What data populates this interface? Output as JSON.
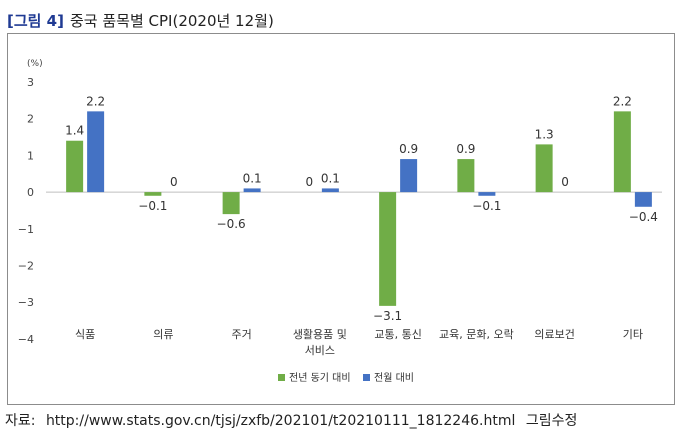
{
  "header": {
    "bracket": "[그림 4]",
    "title": "중국 품목별 CPI(2020년 12월)"
  },
  "source": {
    "label": "자료:",
    "url": "http://www.stats.gov.cn/tjsj/zxfb/202101/t20210111_1812246.html",
    "note": "그림수정"
  },
  "chart_data": {
    "type": "bar",
    "unit": "(%)",
    "categories": [
      [
        "식품"
      ],
      [
        "의류"
      ],
      [
        "주거"
      ],
      [
        "생활용품 및",
        "서비스"
      ],
      [
        "교통, 통신"
      ],
      [
        "교육, 문화, 오락"
      ],
      [
        "의료보건"
      ],
      [
        "기타"
      ]
    ],
    "series": [
      {
        "name": "전년 동기 대비",
        "color": "#70ad47",
        "values": [
          1.4,
          -0.1,
          -0.6,
          0,
          -3.1,
          0.9,
          1.3,
          2.2
        ],
        "labels": [
          "1.4",
          "−0.1",
          "−0.6",
          "0",
          "−3.1",
          "0.9",
          "1.3",
          "2.2"
        ]
      },
      {
        "name": "전월 대비",
        "color": "#4472c4",
        "values": [
          2.2,
          0,
          0.1,
          0.1,
          0.9,
          -0.1,
          0,
          -0.4
        ],
        "labels": [
          "2.2",
          "0",
          "0.1",
          "0.1",
          "0.9",
          "−0.1",
          "0",
          "−0.4"
        ]
      }
    ],
    "yticks": [
      "3",
      "2",
      "1",
      "0",
      "−1",
      "−2",
      "−3",
      "−4"
    ],
    "ylim": [
      -4,
      3
    ],
    "legend_position": "bottom"
  }
}
